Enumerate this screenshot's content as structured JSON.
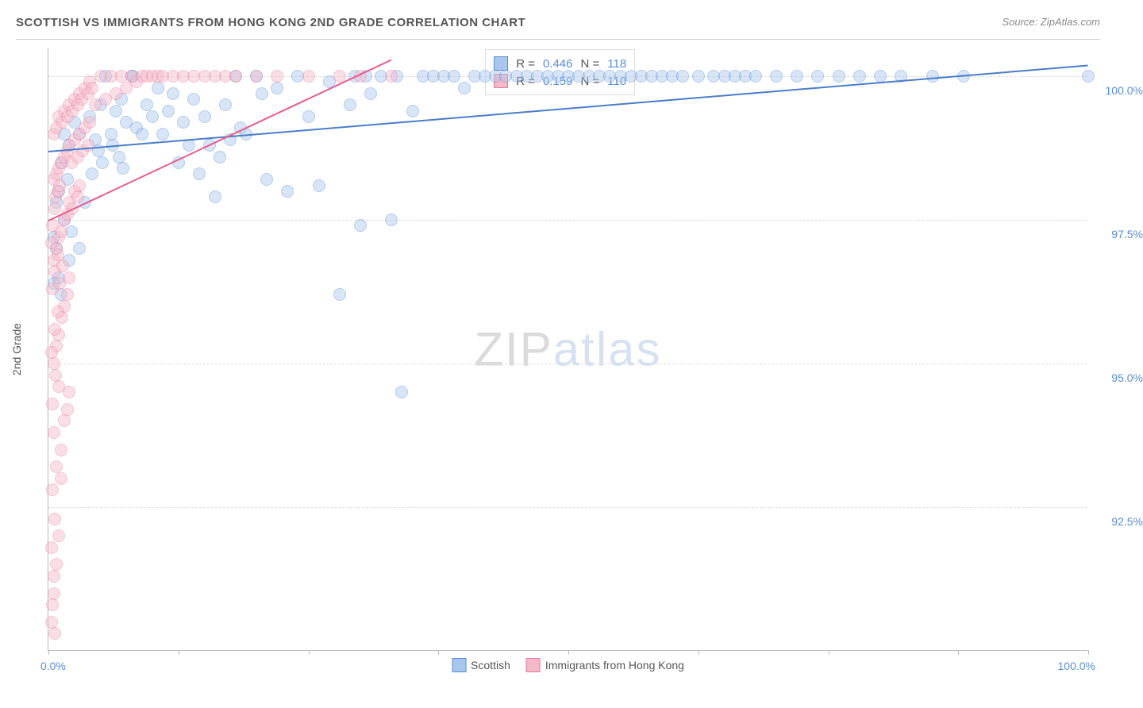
{
  "title": "SCOTTISH VS IMMIGRANTS FROM HONG KONG 2ND GRADE CORRELATION CHART",
  "source": "Source: ZipAtlas.com",
  "y_axis_title": "2nd Grade",
  "chart": {
    "type": "scatter",
    "xlim": [
      0,
      100
    ],
    "ylim": [
      90,
      100.5
    ],
    "x_tick_positions": [
      0,
      12.5,
      25,
      37.5,
      50,
      62.5,
      75,
      87.5,
      100
    ],
    "x_label_min": "0.0%",
    "x_label_max": "100.0%",
    "y_gridlines": [
      {
        "value": 100.0,
        "label": "100.0%"
      },
      {
        "value": 97.5,
        "label": "97.5%"
      },
      {
        "value": 95.0,
        "label": "95.0%"
      },
      {
        "value": 92.5,
        "label": "92.5%"
      }
    ],
    "background_color": "#ffffff",
    "grid_color": "#dddddd",
    "point_radius": 8,
    "point_opacity": 0.45,
    "series": [
      {
        "name": "Scottish",
        "color_fill": "#a9c7ec",
        "color_stroke": "#5a8dd6",
        "R": "0.446",
        "N": "118",
        "trendline": {
          "x1": 0,
          "y1": 98.7,
          "x2": 100,
          "y2": 100.2,
          "color": "#4a7dc9",
          "width": 2
        },
        "points": [
          [
            0.5,
            96.4
          ],
          [
            0.8,
            97.0
          ],
          [
            1.0,
            98.0
          ],
          [
            1.2,
            98.5
          ],
          [
            1.5,
            99.0
          ],
          [
            1.8,
            98.2
          ],
          [
            2.0,
            98.8
          ],
          [
            2.5,
            99.2
          ],
          [
            3.0,
            99.0
          ],
          [
            3.5,
            97.8
          ],
          [
            4.0,
            99.3
          ],
          [
            4.5,
            98.9
          ],
          [
            5.0,
            99.5
          ],
          [
            5.5,
            100.0
          ],
          [
            6.0,
            99.0
          ],
          [
            6.5,
            99.4
          ],
          [
            7.0,
            99.6
          ],
          [
            7.5,
            99.2
          ],
          [
            8.0,
            100.0
          ],
          [
            8.2,
            100.0
          ],
          [
            8.5,
            99.1
          ],
          [
            9.0,
            99.0
          ],
          [
            9.5,
            99.5
          ],
          [
            10.0,
            99.3
          ],
          [
            10.5,
            99.8
          ],
          [
            11.0,
            99.0
          ],
          [
            11.5,
            99.4
          ],
          [
            12.0,
            99.7
          ],
          [
            13.0,
            99.2
          ],
          [
            14.0,
            99.6
          ],
          [
            15.0,
            99.3
          ],
          [
            15.5,
            98.8
          ],
          [
            16.0,
            97.9
          ],
          [
            17.0,
            99.5
          ],
          [
            18.0,
            100.0
          ],
          [
            18.5,
            99.1
          ],
          [
            19.0,
            99.0
          ],
          [
            20.0,
            100.0
          ],
          [
            20.5,
            99.7
          ],
          [
            21.0,
            98.2
          ],
          [
            22.0,
            99.8
          ],
          [
            23.0,
            98.0
          ],
          [
            24.0,
            100.0
          ],
          [
            25.0,
            99.3
          ],
          [
            26.0,
            98.1
          ],
          [
            27.0,
            99.9
          ],
          [
            28.0,
            96.2
          ],
          [
            29.0,
            99.5
          ],
          [
            29.5,
            100.0
          ],
          [
            30.0,
            97.4
          ],
          [
            30.5,
            100.0
          ],
          [
            31.0,
            99.7
          ],
          [
            32.0,
            100.0
          ],
          [
            33.0,
            97.5
          ],
          [
            33.5,
            100.0
          ],
          [
            34.0,
            94.5
          ],
          [
            35.0,
            99.4
          ],
          [
            36.0,
            100.0
          ],
          [
            37.0,
            100.0
          ],
          [
            38.0,
            100.0
          ],
          [
            39.0,
            100.0
          ],
          [
            40.0,
            99.8
          ],
          [
            41.0,
            100.0
          ],
          [
            42.0,
            100.0
          ],
          [
            43.0,
            100.0
          ],
          [
            44.0,
            100.0
          ],
          [
            45.0,
            100.0
          ],
          [
            46.0,
            100.0
          ],
          [
            47.0,
            100.0
          ],
          [
            48.0,
            100.0
          ],
          [
            49.0,
            100.0
          ],
          [
            50.0,
            100.0
          ],
          [
            51.0,
            100.0
          ],
          [
            52.0,
            100.0
          ],
          [
            53.0,
            100.0
          ],
          [
            54.0,
            100.0
          ],
          [
            55.0,
            100.0
          ],
          [
            56.0,
            100.0
          ],
          [
            57.0,
            100.0
          ],
          [
            58.0,
            100.0
          ],
          [
            59.0,
            100.0
          ],
          [
            60.0,
            100.0
          ],
          [
            61.0,
            100.0
          ],
          [
            62.5,
            100.0
          ],
          [
            64.0,
            100.0
          ],
          [
            65.0,
            100.0
          ],
          [
            66.0,
            100.0
          ],
          [
            67.0,
            100.0
          ],
          [
            68.0,
            100.0
          ],
          [
            70.0,
            100.0
          ],
          [
            72.0,
            100.0
          ],
          [
            74.0,
            100.0
          ],
          [
            76.0,
            100.0
          ],
          [
            78.0,
            100.0
          ],
          [
            80.0,
            100.0
          ],
          [
            82.0,
            100.0
          ],
          [
            85.0,
            100.0
          ],
          [
            88.0,
            100.0
          ],
          [
            100.0,
            100.0
          ],
          [
            1.0,
            96.5
          ],
          [
            2.0,
            96.8
          ],
          [
            3.0,
            97.0
          ],
          [
            0.5,
            97.2
          ],
          [
            1.5,
            97.5
          ],
          [
            2.2,
            97.3
          ],
          [
            0.8,
            97.8
          ],
          [
            1.2,
            96.2
          ],
          [
            4.2,
            98.3
          ],
          [
            4.8,
            98.7
          ],
          [
            5.2,
            98.5
          ],
          [
            6.2,
            98.8
          ],
          [
            6.8,
            98.6
          ],
          [
            7.2,
            98.4
          ],
          [
            12.5,
            98.5
          ],
          [
            13.5,
            98.8
          ],
          [
            14.5,
            98.3
          ],
          [
            16.5,
            98.6
          ],
          [
            17.5,
            98.9
          ]
        ]
      },
      {
        "name": "Immigrants from Hong Kong",
        "color_fill": "#f5b8c9",
        "color_stroke": "#e87ca0",
        "R": "0.159",
        "N": "110",
        "trendline": {
          "x1": 0,
          "y1": 97.5,
          "x2": 33,
          "y2": 100.3,
          "color": "#e75a8c",
          "width": 2
        },
        "points": [
          [
            0.3,
            90.5
          ],
          [
            0.5,
            91.0
          ],
          [
            0.8,
            91.5
          ],
          [
            1.0,
            92.0
          ],
          [
            1.2,
            93.5
          ],
          [
            1.5,
            94.0
          ],
          [
            1.8,
            94.2
          ],
          [
            2.0,
            94.5
          ],
          [
            0.5,
            95.0
          ],
          [
            0.8,
            95.3
          ],
          [
            1.0,
            95.5
          ],
          [
            1.3,
            95.8
          ],
          [
            1.5,
            96.0
          ],
          [
            1.8,
            96.2
          ],
          [
            2.0,
            96.5
          ],
          [
            0.5,
            96.8
          ],
          [
            0.8,
            97.0
          ],
          [
            1.0,
            97.2
          ],
          [
            1.2,
            97.3
          ],
          [
            1.5,
            97.5
          ],
          [
            1.8,
            97.6
          ],
          [
            2.0,
            97.8
          ],
          [
            2.3,
            97.7
          ],
          [
            2.5,
            98.0
          ],
          [
            2.8,
            97.9
          ],
          [
            3.0,
            98.1
          ],
          [
            0.5,
            98.2
          ],
          [
            0.8,
            98.3
          ],
          [
            1.0,
            98.4
          ],
          [
            1.3,
            98.5
          ],
          [
            1.5,
            98.6
          ],
          [
            1.8,
            98.7
          ],
          [
            2.0,
            98.8
          ],
          [
            2.2,
            98.5
          ],
          [
            2.5,
            98.9
          ],
          [
            2.8,
            98.6
          ],
          [
            3.0,
            99.0
          ],
          [
            3.3,
            98.7
          ],
          [
            3.5,
            99.1
          ],
          [
            3.8,
            98.8
          ],
          [
            4.0,
            99.2
          ],
          [
            0.5,
            99.0
          ],
          [
            0.8,
            99.1
          ],
          [
            1.0,
            99.3
          ],
          [
            1.3,
            99.2
          ],
          [
            1.5,
            99.4
          ],
          [
            1.8,
            99.3
          ],
          [
            2.0,
            99.5
          ],
          [
            2.3,
            99.4
          ],
          [
            2.5,
            99.6
          ],
          [
            2.8,
            99.5
          ],
          [
            3.0,
            99.7
          ],
          [
            3.2,
            99.6
          ],
          [
            3.5,
            99.8
          ],
          [
            3.8,
            99.7
          ],
          [
            4.0,
            99.9
          ],
          [
            4.2,
            99.8
          ],
          [
            4.5,
            99.5
          ],
          [
            5.0,
            100.0
          ],
          [
            5.5,
            99.6
          ],
          [
            6.0,
            100.0
          ],
          [
            6.5,
            99.7
          ],
          [
            7.0,
            100.0
          ],
          [
            7.5,
            99.8
          ],
          [
            8.0,
            100.0
          ],
          [
            8.5,
            99.9
          ],
          [
            9.0,
            100.0
          ],
          [
            9.5,
            100.0
          ],
          [
            10.0,
            100.0
          ],
          [
            10.5,
            100.0
          ],
          [
            11.0,
            100.0
          ],
          [
            12.0,
            100.0
          ],
          [
            13.0,
            100.0
          ],
          [
            14.0,
            100.0
          ],
          [
            15.0,
            100.0
          ],
          [
            16.0,
            100.0
          ],
          [
            17.0,
            100.0
          ],
          [
            18.0,
            100.0
          ],
          [
            20.0,
            100.0
          ],
          [
            22.0,
            100.0
          ],
          [
            25.0,
            100.0
          ],
          [
            28.0,
            100.0
          ],
          [
            30.0,
            100.0
          ],
          [
            33.0,
            100.0
          ],
          [
            0.3,
            97.1
          ],
          [
            0.4,
            97.4
          ],
          [
            0.6,
            97.7
          ],
          [
            0.7,
            97.9
          ],
          [
            0.9,
            98.0
          ],
          [
            1.1,
            98.1
          ],
          [
            0.4,
            96.3
          ],
          [
            0.6,
            96.6
          ],
          [
            0.9,
            96.9
          ],
          [
            1.1,
            96.4
          ],
          [
            1.4,
            96.7
          ],
          [
            0.3,
            95.2
          ],
          [
            0.6,
            95.6
          ],
          [
            0.9,
            95.9
          ],
          [
            0.4,
            94.3
          ],
          [
            0.7,
            94.8
          ],
          [
            1.0,
            94.6
          ],
          [
            0.5,
            93.8
          ],
          [
            0.8,
            93.2
          ],
          [
            0.4,
            92.8
          ],
          [
            0.6,
            92.3
          ],
          [
            0.3,
            91.8
          ],
          [
            0.5,
            91.3
          ],
          [
            0.4,
            90.8
          ],
          [
            0.6,
            90.3
          ],
          [
            1.2,
            93.0
          ]
        ]
      }
    ]
  },
  "watermark": {
    "zip": "ZIP",
    "atlas": "atlas"
  },
  "legend": {
    "series1_label": "Scottish",
    "series2_label": "Immigrants from Hong Kong"
  },
  "stats_labels": {
    "R": "R =",
    "N": "N ="
  }
}
